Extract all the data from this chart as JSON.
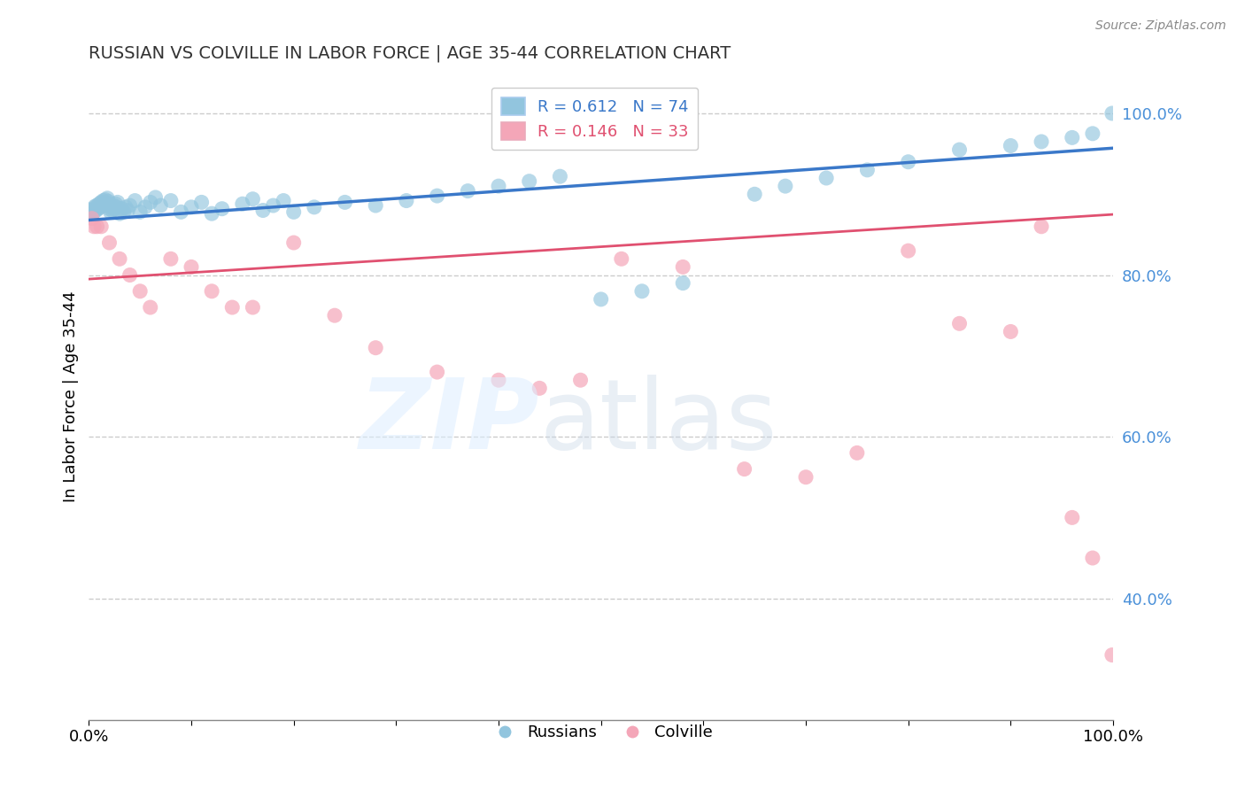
{
  "title": "RUSSIAN VS COLVILLE IN LABOR FORCE | AGE 35-44 CORRELATION CHART",
  "source_text": "Source: ZipAtlas.com",
  "ylabel": "In Labor Force | Age 35-44",
  "xlim": [
    0.0,
    1.0
  ],
  "ylim": [
    0.25,
    1.05
  ],
  "y_ticks_right": [
    1.0,
    0.8,
    0.6,
    0.4
  ],
  "y_tick_labels_right": [
    "100.0%",
    "80.0%",
    "60.0%",
    "40.0%"
  ],
  "watermark_zip": "ZIP",
  "watermark_atlas": "atlas",
  "legend_blue_label": "R = 0.612   N = 74",
  "legend_pink_label": "R = 0.146   N = 33",
  "blue_color": "#92c5de",
  "blue_line_color": "#3a78c9",
  "pink_color": "#f4a6b8",
  "pink_line_color": "#e05070",
  "grid_color": "#cccccc",
  "right_axis_color": "#4a90d9",
  "blue_trend_x": [
    0.0,
    1.0
  ],
  "blue_trend_y": [
    0.868,
    0.957
  ],
  "pink_trend_x": [
    0.0,
    1.0
  ],
  "pink_trend_y": [
    0.795,
    0.875
  ],
  "russians_x": [
    0.002,
    0.003,
    0.004,
    0.005,
    0.006,
    0.007,
    0.008,
    0.009,
    0.01,
    0.011,
    0.012,
    0.013,
    0.014,
    0.015,
    0.016,
    0.017,
    0.018,
    0.019,
    0.02,
    0.021,
    0.022,
    0.023,
    0.024,
    0.025,
    0.026,
    0.027,
    0.028,
    0.03,
    0.032,
    0.034,
    0.036,
    0.038,
    0.04,
    0.045,
    0.05,
    0.055,
    0.06,
    0.065,
    0.07,
    0.08,
    0.09,
    0.1,
    0.11,
    0.12,
    0.13,
    0.15,
    0.16,
    0.17,
    0.18,
    0.19,
    0.2,
    0.22,
    0.25,
    0.28,
    0.31,
    0.34,
    0.37,
    0.4,
    0.43,
    0.46,
    0.5,
    0.54,
    0.58,
    0.65,
    0.68,
    0.72,
    0.76,
    0.8,
    0.85,
    0.9,
    0.93,
    0.96,
    0.98,
    0.999
  ],
  "russians_y": [
    0.88,
    0.875,
    0.882,
    0.878,
    0.885,
    0.88,
    0.886,
    0.882,
    0.888,
    0.884,
    0.89,
    0.886,
    0.892,
    0.888,
    0.893,
    0.889,
    0.895,
    0.891,
    0.882,
    0.878,
    0.884,
    0.88,
    0.886,
    0.882,
    0.888,
    0.884,
    0.89,
    0.876,
    0.882,
    0.878,
    0.884,
    0.88,
    0.886,
    0.892,
    0.878,
    0.884,
    0.89,
    0.896,
    0.886,
    0.892,
    0.878,
    0.884,
    0.89,
    0.876,
    0.882,
    0.888,
    0.894,
    0.88,
    0.886,
    0.892,
    0.878,
    0.884,
    0.89,
    0.886,
    0.892,
    0.898,
    0.904,
    0.91,
    0.916,
    0.922,
    0.77,
    0.78,
    0.79,
    0.9,
    0.91,
    0.92,
    0.93,
    0.94,
    0.955,
    0.96,
    0.965,
    0.97,
    0.975,
    1.0
  ],
  "colville_x": [
    0.003,
    0.005,
    0.008,
    0.012,
    0.02,
    0.03,
    0.04,
    0.05,
    0.06,
    0.08,
    0.1,
    0.12,
    0.14,
    0.16,
    0.2,
    0.24,
    0.28,
    0.34,
    0.4,
    0.44,
    0.48,
    0.52,
    0.58,
    0.64,
    0.7,
    0.75,
    0.8,
    0.85,
    0.9,
    0.93,
    0.96,
    0.98,
    0.999
  ],
  "colville_y": [
    0.87,
    0.86,
    0.86,
    0.86,
    0.84,
    0.82,
    0.8,
    0.78,
    0.76,
    0.82,
    0.81,
    0.78,
    0.76,
    0.76,
    0.84,
    0.75,
    0.71,
    0.68,
    0.67,
    0.66,
    0.67,
    0.82,
    0.81,
    0.56,
    0.55,
    0.58,
    0.83,
    0.74,
    0.73,
    0.86,
    0.5,
    0.45,
    0.33
  ]
}
